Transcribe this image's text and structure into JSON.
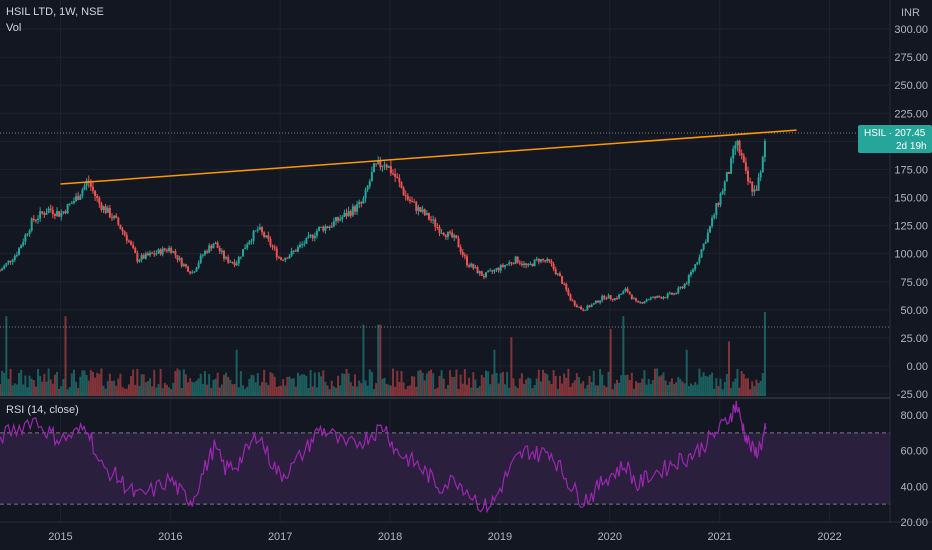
{
  "header": {
    "symbol_line": "HSIL LTD, 1W, NSE",
    "volume_label": "Vol",
    "rsi_label": "RSI (14, close)"
  },
  "currency": "INR",
  "price_badge": {
    "label": "HSIL · 207.45",
    "countdown": "2d 19h"
  },
  "colors": {
    "background": "#131722",
    "up": "#26a69a",
    "down": "#ef5350",
    "trendline": "#ff9800",
    "rsi_line": "#9c27b0",
    "rsi_band": "#2a1f3d",
    "badge": "#26a69a"
  },
  "chart_data": [
    {
      "type": "candlestick",
      "series_type": "weekly OHLC",
      "y_ticks": [
        "300.00",
        "275.00",
        "250.00",
        "225.00",
        "200.00",
        "175.00",
        "150.00",
        "125.00",
        "100.00",
        "75.00",
        "50.00",
        "25.00",
        "0.00",
        "-25.00"
      ],
      "ylim": [
        -25,
        300
      ],
      "x_ticks": [
        "2015",
        "2016",
        "2017",
        "2018",
        "2019",
        "2020",
        "2021",
        "2022"
      ],
      "xlim": [
        2014.45,
        2022.55
      ],
      "last_price": 207.45,
      "trendline": [
        {
          "x": 2015.0,
          "y": 162
        },
        {
          "x": 2021.7,
          "y": 210
        }
      ],
      "close_path": [
        {
          "x": 2014.45,
          "y": 85
        },
        {
          "x": 2014.6,
          "y": 100
        },
        {
          "x": 2014.75,
          "y": 130
        },
        {
          "x": 2014.9,
          "y": 140
        },
        {
          "x": 2015.0,
          "y": 135
        },
        {
          "x": 2015.15,
          "y": 150
        },
        {
          "x": 2015.25,
          "y": 165
        },
        {
          "x": 2015.35,
          "y": 145
        },
        {
          "x": 2015.5,
          "y": 130
        },
        {
          "x": 2015.6,
          "y": 115
        },
        {
          "x": 2015.7,
          "y": 95
        },
        {
          "x": 2015.85,
          "y": 100
        },
        {
          "x": 2016.0,
          "y": 105
        },
        {
          "x": 2016.1,
          "y": 92
        },
        {
          "x": 2016.2,
          "y": 83
        },
        {
          "x": 2016.3,
          "y": 100
        },
        {
          "x": 2016.4,
          "y": 110
        },
        {
          "x": 2016.5,
          "y": 95
        },
        {
          "x": 2016.6,
          "y": 92
        },
        {
          "x": 2016.7,
          "y": 110
        },
        {
          "x": 2016.8,
          "y": 122
        },
        {
          "x": 2016.9,
          "y": 110
        },
        {
          "x": 2017.0,
          "y": 95
        },
        {
          "x": 2017.1,
          "y": 100
        },
        {
          "x": 2017.25,
          "y": 112
        },
        {
          "x": 2017.35,
          "y": 122
        },
        {
          "x": 2017.45,
          "y": 125
        },
        {
          "x": 2017.6,
          "y": 135
        },
        {
          "x": 2017.75,
          "y": 145
        },
        {
          "x": 2017.85,
          "y": 175
        },
        {
          "x": 2017.95,
          "y": 182
        },
        {
          "x": 2018.05,
          "y": 168
        },
        {
          "x": 2018.15,
          "y": 150
        },
        {
          "x": 2018.25,
          "y": 140
        },
        {
          "x": 2018.35,
          "y": 132
        },
        {
          "x": 2018.45,
          "y": 122
        },
        {
          "x": 2018.6,
          "y": 112
        },
        {
          "x": 2018.7,
          "y": 92
        },
        {
          "x": 2018.85,
          "y": 80
        },
        {
          "x": 2018.95,
          "y": 85
        },
        {
          "x": 2019.05,
          "y": 90
        },
        {
          "x": 2019.15,
          "y": 95
        },
        {
          "x": 2019.25,
          "y": 88
        },
        {
          "x": 2019.35,
          "y": 95
        },
        {
          "x": 2019.45,
          "y": 92
        },
        {
          "x": 2019.55,
          "y": 78
        },
        {
          "x": 2019.65,
          "y": 58
        },
        {
          "x": 2019.75,
          "y": 50
        },
        {
          "x": 2019.85,
          "y": 55
        },
        {
          "x": 2019.95,
          "y": 62
        },
        {
          "x": 2020.05,
          "y": 60
        },
        {
          "x": 2020.15,
          "y": 68
        },
        {
          "x": 2020.25,
          "y": 55
        },
        {
          "x": 2020.35,
          "y": 60
        },
        {
          "x": 2020.5,
          "y": 62
        },
        {
          "x": 2020.6,
          "y": 65
        },
        {
          "x": 2020.7,
          "y": 75
        },
        {
          "x": 2020.8,
          "y": 95
        },
        {
          "x": 2020.9,
          "y": 120
        },
        {
          "x": 2021.0,
          "y": 150
        },
        {
          "x": 2021.1,
          "y": 178
        },
        {
          "x": 2021.15,
          "y": 200
        },
        {
          "x": 2021.2,
          "y": 185
        },
        {
          "x": 2021.25,
          "y": 165
        },
        {
          "x": 2021.32,
          "y": 155
        },
        {
          "x": 2021.38,
          "y": 172
        },
        {
          "x": 2021.42,
          "y": 207
        }
      ],
      "volume_spikes": [
        {
          "x": 2014.5,
          "y": 0.95
        },
        {
          "x": 2015.05,
          "y": 0.95
        },
        {
          "x": 2016.6,
          "y": 0.55
        },
        {
          "x": 2017.75,
          "y": 0.85
        },
        {
          "x": 2017.9,
          "y": 0.85
        },
        {
          "x": 2018.95,
          "y": 0.55
        },
        {
          "x": 2019.1,
          "y": 0.7
        },
        {
          "x": 2020.0,
          "y": 0.8
        },
        {
          "x": 2020.12,
          "y": 0.95
        },
        {
          "x": 2020.7,
          "y": 0.55
        },
        {
          "x": 2021.08,
          "y": 0.65
        },
        {
          "x": 2021.42,
          "y": 1.0
        }
      ]
    },
    {
      "type": "line",
      "title": "RSI (14, close)",
      "y_ticks": [
        "80.00",
        "60.00",
        "40.00",
        "20.00"
      ],
      "ylim": [
        20,
        90
      ],
      "bands": [
        30,
        70
      ],
      "series": [
        {
          "x": [
            2014.45,
            2014.6,
            2014.75,
            2014.9,
            2015.0,
            2015.15,
            2015.25,
            2015.35,
            2015.5,
            2015.6,
            2015.7,
            2015.85,
            2016.0,
            2016.1,
            2016.2,
            2016.3,
            2016.4,
            2016.5,
            2016.6,
            2016.7,
            2016.8,
            2016.9,
            2017.0,
            2017.1,
            2017.25,
            2017.35,
            2017.45,
            2017.6,
            2017.75,
            2017.85,
            2017.95,
            2018.05,
            2018.15,
            2018.25,
            2018.35,
            2018.45,
            2018.6,
            2018.7,
            2018.85,
            2018.95,
            2019.05,
            2019.15,
            2019.25,
            2019.35,
            2019.45,
            2019.55,
            2019.65,
            2019.75,
            2019.85,
            2019.95,
            2020.05,
            2020.15,
            2020.25,
            2020.35,
            2020.5,
            2020.6,
            2020.7,
            2020.8,
            2020.9,
            2021.0,
            2021.1,
            2021.15,
            2021.2,
            2021.25,
            2021.32,
            2021.38,
            2021.42
          ],
          "values": [
            68,
            72,
            78,
            70,
            66,
            70,
            74,
            52,
            46,
            40,
            34,
            38,
            44,
            36,
            32,
            48,
            62,
            50,
            52,
            60,
            70,
            56,
            46,
            50,
            62,
            72,
            70,
            62,
            66,
            70,
            74,
            60,
            56,
            52,
            46,
            40,
            44,
            38,
            28,
            32,
            45,
            55,
            60,
            58,
            60,
            50,
            40,
            32,
            36,
            44,
            48,
            52,
            40,
            46,
            50,
            54,
            56,
            60,
            66,
            72,
            80,
            86,
            76,
            66,
            58,
            64,
            72
          ]
        }
      ]
    }
  ]
}
